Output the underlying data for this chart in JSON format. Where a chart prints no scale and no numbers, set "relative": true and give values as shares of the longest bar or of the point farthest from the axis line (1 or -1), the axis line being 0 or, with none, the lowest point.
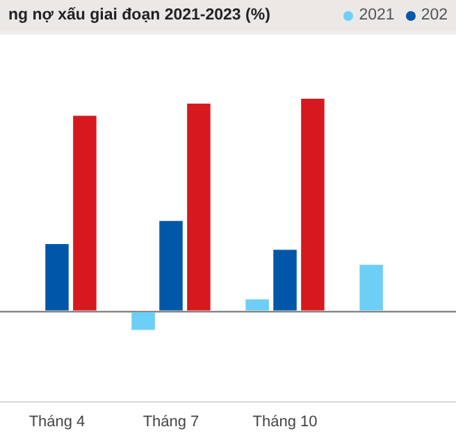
{
  "chart_data": {
    "type": "bar",
    "title": "ng nợ xấu giai đoạn 2021-2023 (%)",
    "relative": true,
    "legend": "top right",
    "categories": [
      "Tháng 4",
      "Tháng 7",
      "Tháng 10",
      null
    ],
    "series": [
      {
        "name": "2021",
        "color": "#6dcff6",
        "values": [
          null,
          -0.088,
          0.056,
          0.219
        ]
      },
      {
        "name": "202",
        "color": "#0057a8",
        "values": [
          0.316,
          0.425,
          0.289,
          null
        ]
      },
      {
        "color": "#d7191f",
        "values": [
          0.92,
          0.977,
          1,
          null
        ]
      }
    ]
  }
}
